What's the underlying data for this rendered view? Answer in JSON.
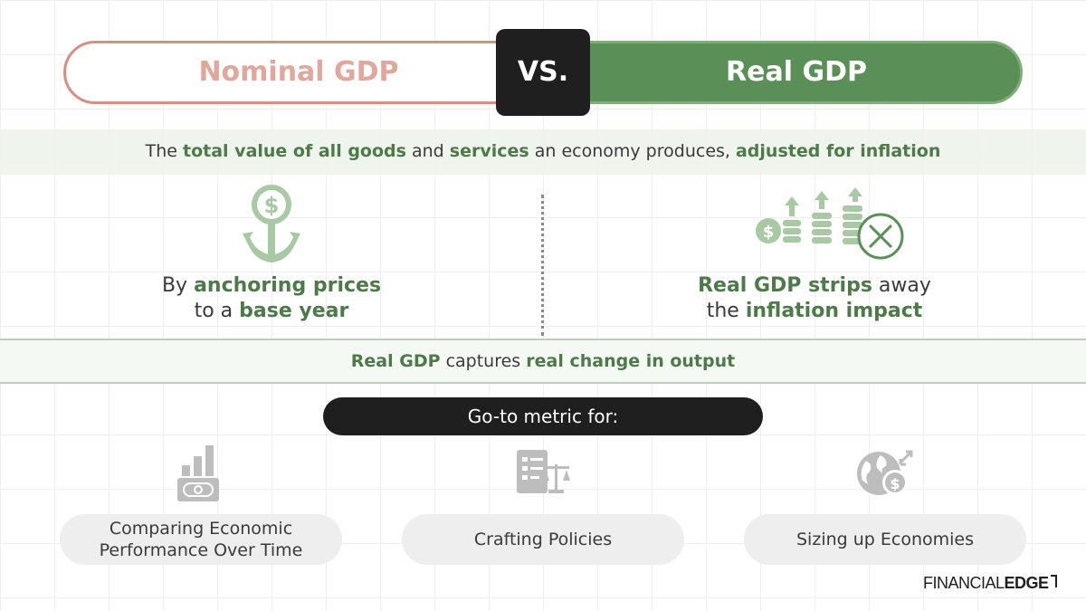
{
  "header": {
    "left_label": "Nominal GDP",
    "vs_label": "VS.",
    "right_label": "Real GDP"
  },
  "definition": {
    "t1": "The ",
    "b1": "total value of all goods",
    "t2": " and ",
    "b2": "services",
    "t3": " an economy produces, ",
    "b3": "adjusted for inflation"
  },
  "left_point": {
    "icon": "anchor-dollar-icon",
    "t1": "By ",
    "b1": "anchoring prices",
    "t2": "to a ",
    "b2": "base year"
  },
  "right_point": {
    "icon": "inflation-removed-icon",
    "b1": "Real GDP strips",
    "t1": " away",
    "t2": "the ",
    "b2": "inflation impact"
  },
  "capture": {
    "b1": "Real GDP",
    "t1": " captures ",
    "b2": "real change in output"
  },
  "goto_label": "Go-to metric for:",
  "metrics": [
    {
      "icon": "bar-chart-money-icon",
      "line1": "Comparing Economic",
      "line2": "Performance Over Time"
    },
    {
      "icon": "policy-document-scale-icon",
      "line1": "Crafting Policies"
    },
    {
      "icon": "globe-money-icon",
      "line1": "Sizing up Economies"
    }
  ],
  "brand": {
    "part1": "FINANCIAL",
    "part2": "EDGE"
  },
  "colors": {
    "green": "#5a8f57",
    "green_text": "#4e7a4a",
    "salmon": "#d98e82",
    "dark": "#1f1f1f",
    "icon_green": "#a9c8a4",
    "icon_grey": "#bdbdbd"
  }
}
